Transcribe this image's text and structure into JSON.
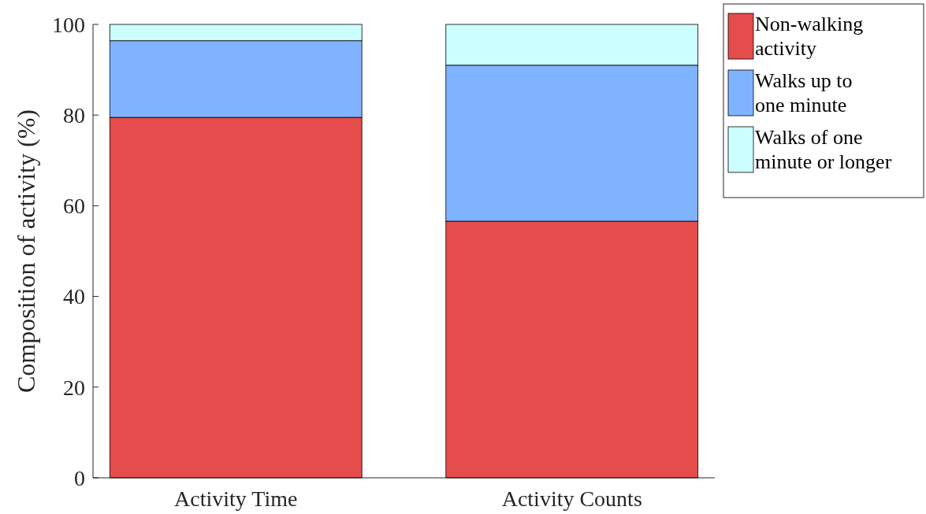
{
  "chart_data": {
    "type": "bar",
    "stacked": true,
    "ylabel": "Composition of activity (%)",
    "categories": [
      "Activity Time",
      "Activity Counts"
    ],
    "series": [
      {
        "name": "Non-walking activity",
        "color": "#e54d4d",
        "values": [
          79.5,
          56.6
        ]
      },
      {
        "name": "Walks up to one minute",
        "color": "#80b3ff",
        "values": [
          16.9,
          34.4
        ]
      },
      {
        "name": "Walks of one minute or longer",
        "color": "#ccffff",
        "values": [
          3.6,
          9.0
        ]
      }
    ],
    "ylim": [
      0,
      100
    ],
    "yticks": [
      0,
      20,
      40,
      60,
      80,
      100
    ],
    "legend": "top right",
    "grid": false
  }
}
